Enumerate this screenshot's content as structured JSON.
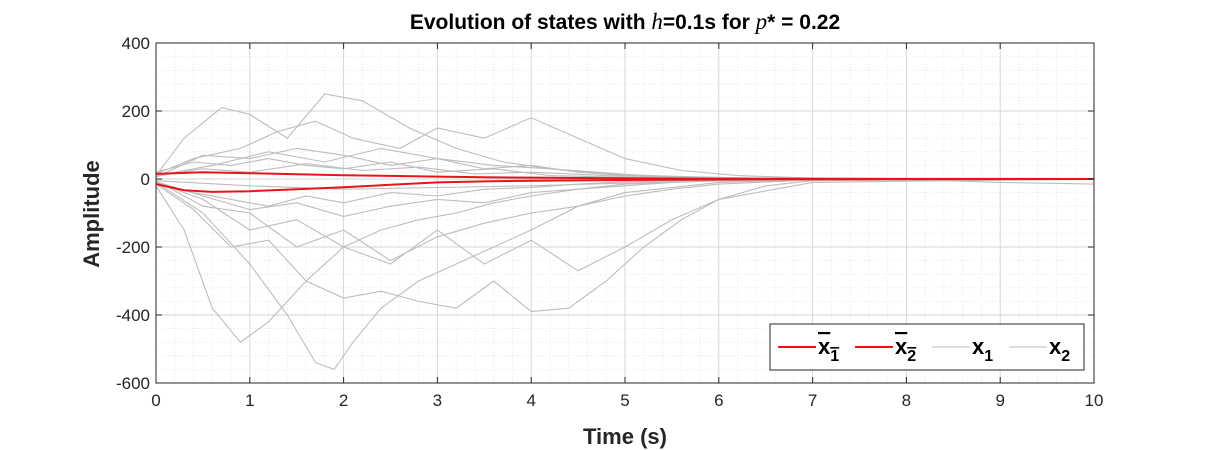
{
  "chart_data": {
    "type": "line",
    "title": {
      "prefix": "Evolution of states with ",
      "h_symbol": "h",
      "middle": "=0.1s for ",
      "p_symbol": "p",
      "suffix": "* = 0.22"
    },
    "xlabel": "Time (s)",
    "ylabel": "Amplitude",
    "xlim": [
      0,
      10
    ],
    "ylim": [
      -600,
      400
    ],
    "x_ticks": [
      0,
      1,
      2,
      3,
      4,
      5,
      6,
      7,
      8,
      9,
      10
    ],
    "y_ticks": [
      400,
      200,
      0,
      -200,
      -400,
      -600
    ],
    "grid": true,
    "minor_grid": true,
    "legend_position": "bottom-right",
    "legend": [
      {
        "label": "x",
        "bar": true,
        "sub": "1",
        "color": "#e8141a"
      },
      {
        "label": "x",
        "bar": true,
        "sub": "2",
        "color": "#e8141a"
      },
      {
        "label": "x",
        "bar": false,
        "sub": "1",
        "color": "#bdbdbd"
      },
      {
        "label": "x",
        "bar": false,
        "sub": "2",
        "color": "#bdbdbd"
      }
    ],
    "mean_series": [
      {
        "name": "x̄1",
        "color": "#e8141a",
        "x": [
          0,
          0.5,
          1,
          1.5,
          2,
          2.5,
          3,
          3.5,
          4,
          4.5,
          5,
          5.5,
          6,
          6.5,
          7,
          8,
          9,
          10
        ],
        "y": [
          15,
          20,
          17,
          14,
          11,
          9,
          7,
          5,
          4,
          3,
          2,
          1.5,
          1,
          0.8,
          0.5,
          0.3,
          0.2,
          0.1
        ]
      },
      {
        "name": "x̄2",
        "color": "#e8141a",
        "x": [
          0,
          0.3,
          0.6,
          1,
          1.5,
          2,
          2.5,
          3,
          3.5,
          4,
          4.5,
          5,
          5.5,
          6,
          6.5,
          7,
          8,
          9,
          10
        ],
        "y": [
          -15,
          -33,
          -38,
          -36,
          -30,
          -24,
          -17,
          -10,
          -7,
          -5,
          -4,
          -3,
          -2,
          -1.5,
          -1,
          -0.7,
          -0.4,
          -0.2,
          -0.1
        ]
      }
    ],
    "sample_series": [
      {
        "name": "x1",
        "x": [
          0,
          0.3,
          0.7,
          1,
          1.4,
          1.8,
          2.2,
          2.7,
          3.2,
          3.7,
          4.2,
          4.7,
          5.2,
          5.8,
          6.5,
          7.5,
          8.5,
          10
        ],
        "y": [
          10,
          120,
          210,
          190,
          120,
          250,
          230,
          150,
          90,
          50,
          30,
          20,
          10,
          5,
          2,
          1,
          0,
          0
        ]
      },
      {
        "name": "x1",
        "x": [
          0,
          0.4,
          0.9,
          1.3,
          1.7,
          2.1,
          2.6,
          3.0,
          3.5,
          4.0,
          4.5,
          5.0,
          5.6,
          6.2,
          7,
          8,
          10
        ],
        "y": [
          15,
          60,
          90,
          140,
          170,
          120,
          90,
          150,
          120,
          180,
          120,
          60,
          25,
          10,
          3,
          1,
          0
        ]
      },
      {
        "name": "x1",
        "x": [
          0,
          0.5,
          1,
          1.5,
          2,
          2.5,
          3,
          3.5,
          4,
          4.5,
          5,
          6,
          7,
          10
        ],
        "y": [
          5,
          70,
          60,
          90,
          70,
          40,
          60,
          30,
          40,
          20,
          10,
          4,
          1,
          0
        ]
      },
      {
        "name": "x1",
        "x": [
          0,
          0.4,
          0.8,
          1.2,
          1.6,
          2,
          2.5,
          3,
          3.6,
          4.2,
          5,
          6,
          7,
          10
        ],
        "y": [
          20,
          50,
          40,
          60,
          40,
          30,
          50,
          20,
          30,
          10,
          5,
          2,
          1,
          0
        ]
      },
      {
        "name": "x1",
        "x": [
          0,
          0.6,
          1.2,
          1.8,
          2.4,
          3,
          3.6,
          4.2,
          4.8,
          5.5,
          6.5,
          10
        ],
        "y": [
          10,
          40,
          80,
          50,
          90,
          60,
          40,
          30,
          15,
          8,
          2,
          0
        ]
      },
      {
        "name": "x1",
        "x": [
          0,
          0.5,
          1,
          1.6,
          2.2,
          2.8,
          3.4,
          4,
          4.8,
          5.6,
          6.5,
          10
        ],
        "y": [
          8,
          30,
          20,
          45,
          25,
          35,
          15,
          20,
          10,
          5,
          1,
          0
        ]
      },
      {
        "name": "x2",
        "x": [
          0,
          0.3,
          0.6,
          0.9,
          1.2,
          1.6,
          2,
          2.4,
          2.8,
          3.2,
          3.6,
          4,
          4.5,
          5,
          5.5,
          6,
          7,
          8,
          10
        ],
        "y": [
          -20,
          -150,
          -380,
          -480,
          -420,
          -300,
          -200,
          -150,
          -120,
          -100,
          -70,
          -50,
          -30,
          -20,
          -10,
          -5,
          -2,
          -1,
          0
        ]
      },
      {
        "name": "x2",
        "x": [
          0,
          0.5,
          1,
          1.4,
          1.7,
          1.9,
          2.1,
          2.4,
          2.8,
          3.2,
          3.6,
          4,
          4.5,
          5,
          6,
          7,
          10
        ],
        "y": [
          -10,
          -100,
          -250,
          -400,
          -540,
          -560,
          -480,
          -380,
          -300,
          -250,
          -200,
          -150,
          -80,
          -40,
          -10,
          -2,
          0
        ]
      },
      {
        "name": "x2",
        "x": [
          0,
          0.4,
          0.8,
          1.2,
          1.6,
          2.0,
          2.4,
          2.8,
          3.2,
          3.6,
          4,
          4.4,
          4.8,
          5.2,
          5.6,
          6,
          7,
          10
        ],
        "y": [
          -15,
          -90,
          -200,
          -180,
          -300,
          -350,
          -330,
          -360,
          -380,
          -300,
          -390,
          -380,
          -300,
          -200,
          -120,
          -60,
          -10,
          0
        ]
      },
      {
        "name": "x2",
        "x": [
          0,
          0.5,
          1,
          1.5,
          2,
          2.5,
          3,
          3.5,
          4,
          4.5,
          5,
          5.5,
          6,
          6.5,
          7,
          10
        ],
        "y": [
          -10,
          -60,
          -150,
          -120,
          -200,
          -250,
          -150,
          -250,
          -180,
          -270,
          -200,
          -120,
          -60,
          -20,
          -5,
          0
        ]
      },
      {
        "name": "x2",
        "x": [
          0,
          0.5,
          1,
          1.5,
          2,
          2.5,
          3,
          3.5,
          4,
          4.5,
          5,
          5.5,
          6,
          7,
          10
        ],
        "y": [
          -5,
          -80,
          -100,
          -200,
          -150,
          -240,
          -170,
          -130,
          -100,
          -80,
          -50,
          -30,
          -15,
          -3,
          0
        ]
      },
      {
        "name": "x2",
        "x": [
          0,
          0.5,
          1,
          1.5,
          2,
          2.5,
          3,
          3.5,
          4,
          4.5,
          5,
          6,
          7,
          10
        ],
        "y": [
          -8,
          -50,
          -90,
          -70,
          -110,
          -80,
          -60,
          -70,
          -40,
          -30,
          -15,
          -5,
          -1,
          0
        ]
      },
      {
        "name": "x2",
        "x": [
          0,
          0.4,
          0.8,
          1.2,
          1.6,
          2,
          2.5,
          3,
          3.5,
          4,
          4.5,
          5,
          6,
          7,
          10
        ],
        "y": [
          -10,
          -40,
          -60,
          -80,
          -50,
          -70,
          -40,
          -50,
          -30,
          -25,
          -15,
          -8,
          -3,
          -1,
          0
        ]
      },
      {
        "name": "x2",
        "x": [
          0,
          1,
          2,
          3,
          4,
          5,
          6,
          7,
          8,
          9,
          10
        ],
        "y": [
          -5,
          -20,
          -30,
          -25,
          -20,
          -12,
          -6,
          -3,
          -1,
          -10,
          -15
        ]
      }
    ]
  }
}
